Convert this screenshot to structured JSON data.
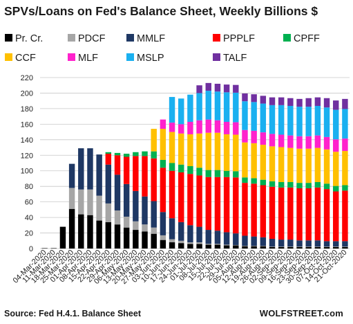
{
  "header": {
    "title": "SPVs/Loans  on Fed's Balance Sheet, Weekly Billions $"
  },
  "footer": {
    "source": "Source: Fed H.4.1. Balance Sheet",
    "brand": "WOLFSTREET.com"
  },
  "chart_data": {
    "type": "bar",
    "stacked": true,
    "ylim": [
      0,
      220
    ],
    "yticks": [
      0,
      20,
      40,
      60,
      80,
      100,
      120,
      140,
      160,
      180,
      200,
      220
    ],
    "grid": "horizontal",
    "legend_position": "top",
    "categories": [
      "04-Mar-2020",
      "11-Mar-2020",
      "18-Mar-2020",
      "25-Mar-2020",
      "01-Apr-2020",
      "08-Apr-2020",
      "15-Apr-2020",
      "22-Apr-2020",
      "29-Apr-2020",
      "06-May-2020",
      "13-May-2020",
      "20-May-2020",
      "27-May-2020",
      "03-Jun-2020",
      "10-Jun-2020",
      "17-Jun-2020",
      "24-Jun-2020",
      "01-Jul-2020",
      "08-Jul-2020",
      "15-Jul-2020",
      "22-Jul-2020",
      "29-Jul-2020",
      "05-Aug-2020",
      "12-Aug-2020",
      "19-Aug-2020",
      "26-Aug-2020",
      "02-Sep-2020",
      "09-Sep-2020",
      "16-Sep-2020",
      "23-Sep-2020",
      "30-Sep-2020",
      "07-Oct-2020",
      "14-Oct-2020",
      "21-Oct-2020"
    ],
    "xtick_labels": [
      "04-Mar-2020",
      "11-Mar-2020",
      "18-Mar-2020",
      "25-Mar-2020",
      "01-Apr-2020",
      "08-Apr-2020",
      "15-Apr-2020",
      "22-Apr-2020",
      "29-Apr-2020",
      "06-May-2020",
      "13-May-2020",
      "20-May-2020",
      "27-May-2020",
      "03-Jun-2020",
      "10-Jun-2020",
      "17-Jun-2020",
      "24-Jun-2020",
      "01-Jul-2020",
      "08-Jul-2020",
      "15-Jul-2020",
      "22-Jul-2020",
      "29-Jul-2020",
      "05-Aug-2020",
      "12-Aug-2020",
      "19-Aug-2020",
      "26-Aug-2020",
      "02-Sep-2020",
      "09-Sep-2020",
      "16-Sep-2020",
      "23-Sep-2020",
      "30-Sep-2020",
      "07-Oct-2020",
      "14-Oct-2020",
      "21-Oct-2020"
    ],
    "series": [
      {
        "name": "Pr. Cr.",
        "color": "#000000",
        "values": [
          0.5,
          0.5,
          28,
          51,
          44,
          43,
          36,
          34,
          31,
          27,
          24,
          22,
          19,
          11,
          8,
          7,
          6,
          6,
          5,
          5,
          4,
          4,
          3,
          3,
          3,
          2,
          2,
          2,
          2,
          2,
          2,
          2,
          2,
          2
        ]
      },
      {
        "name": "PDCF",
        "color": "#a6a6a6",
        "values": [
          0,
          0,
          0,
          27,
          32,
          33,
          32,
          24,
          18,
          14,
          11,
          9,
          8,
          6,
          4,
          3,
          2,
          2,
          1,
          1,
          1,
          0.5,
          0.5,
          0.5,
          0.5,
          0.5,
          0.5,
          0.5,
          0.5,
          0.5,
          0.5,
          0.5,
          0.5,
          0.5
        ]
      },
      {
        "name": "MMLF",
        "color": "#1f3864",
        "values": [
          0,
          0,
          0,
          31,
          53,
          53,
          53,
          50,
          46,
          42,
          39,
          36,
          34,
          30,
          27,
          24,
          22,
          20,
          18,
          17,
          16,
          15,
          13,
          12,
          11,
          10,
          9,
          9,
          8,
          8,
          8,
          7,
          7,
          7
        ]
      },
      {
        "name": "PPPLF",
        "color": "#ff0000",
        "values": [
          0,
          0,
          0,
          0,
          0,
          0,
          0,
          14,
          25,
          35,
          45,
          52,
          55,
          57,
          61,
          64,
          66,
          66,
          68,
          69,
          71,
          72,
          68,
          68,
          67,
          67,
          67,
          67,
          67,
          67,
          68,
          67,
          64,
          65
        ]
      },
      {
        "name": "CPFF",
        "color": "#00b050",
        "values": [
          0,
          0,
          0,
          0,
          0,
          0,
          0,
          2,
          3,
          4,
          5,
          6,
          9,
          10,
          10,
          10,
          10,
          10,
          9,
          9,
          8,
          8,
          7,
          7,
          7,
          7,
          7,
          7,
          7,
          7,
          7,
          7,
          7,
          7
        ]
      },
      {
        "name": "CCF",
        "color": "#ffc000",
        "values": [
          0,
          0,
          0,
          0,
          0,
          0,
          0,
          0,
          0,
          0,
          0,
          0,
          29,
          40,
          40,
          40,
          41,
          44,
          48,
          48,
          47,
          47,
          45,
          45,
          45,
          45,
          45,
          44,
          44,
          44,
          44,
          44,
          44,
          44
        ]
      },
      {
        "name": "MLF",
        "color": "#ff22cc",
        "values": [
          0,
          0,
          0,
          0,
          0,
          0,
          0,
          0,
          0,
          0,
          0,
          0,
          0,
          12,
          12,
          12,
          16,
          17,
          17,
          16,
          16,
          16,
          16,
          16,
          16,
          16,
          16,
          16,
          16,
          16,
          16,
          16,
          16,
          16
        ]
      },
      {
        "name": "MSLP",
        "color": "#1ab0f0",
        "values": [
          0,
          0,
          0,
          0,
          0,
          0,
          0,
          0,
          0,
          0,
          0,
          0,
          0,
          0,
          33,
          33,
          35,
          35,
          37,
          37,
          38,
          38,
          37,
          37,
          37,
          37,
          38,
          38,
          38,
          38,
          38,
          38,
          38,
          38
        ]
      },
      {
        "name": "TALF",
        "color": "#7030a0",
        "values": [
          0,
          0,
          0,
          0,
          0,
          0,
          0,
          0,
          0,
          0,
          0,
          0,
          0,
          0,
          0,
          0,
          0,
          10,
          10,
          10,
          10,
          10,
          10,
          10,
          10,
          10,
          10,
          10,
          10,
          11,
          11,
          12,
          12,
          13
        ]
      }
    ]
  }
}
